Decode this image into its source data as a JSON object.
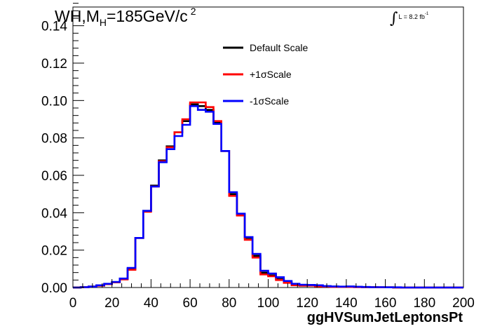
{
  "title": {
    "prefix": "WH,M",
    "sub": "H",
    "main": "=185GeV/c",
    "sup": "2"
  },
  "lumi": {
    "integral": "∫",
    "text": "L = 8.2 fb",
    "sup": "-1"
  },
  "chart_data": {
    "type": "line",
    "xlabel": "ggHVSumJetLeptonsPt",
    "ylabel": "",
    "xlim": [
      0,
      200
    ],
    "ylim": [
      0,
      0.15
    ],
    "x_ticks": [
      "0",
      "20",
      "40",
      "60",
      "80",
      "100",
      "120",
      "140",
      "160",
      "180",
      "200"
    ],
    "y_ticks": [
      "0.00",
      "0.02",
      "0.04",
      "0.06",
      "0.08",
      "0.10",
      "0.12",
      "0.14"
    ],
    "bin_width": 4,
    "x": [
      0,
      4,
      8,
      12,
      16,
      20,
      24,
      28,
      32,
      36,
      40,
      44,
      48,
      52,
      56,
      60,
      64,
      68,
      72,
      76,
      80,
      84,
      88,
      92,
      96,
      100,
      104,
      108,
      112,
      116,
      120,
      124,
      128,
      132,
      136,
      140,
      144,
      148,
      152,
      156,
      160,
      164,
      168,
      172,
      176,
      180,
      184,
      188,
      192,
      196
    ],
    "grid": false,
    "legend_position": "top-center",
    "series": [
      {
        "name": "Default Scale",
        "color": "#000000",
        "values": [
          0.0,
          0.0002,
          0.0005,
          0.001,
          0.0018,
          0.0028,
          0.0045,
          0.01,
          0.0265,
          0.041,
          0.0545,
          0.068,
          0.0755,
          0.083,
          0.089,
          0.098,
          0.097,
          0.095,
          0.088,
          0.073,
          0.05,
          0.039,
          0.0265,
          0.017,
          0.008,
          0.0065,
          0.0045,
          0.003,
          0.0015,
          0.001,
          0.0012,
          0.0008,
          0.0006,
          0.0004,
          0.0004,
          0.0004,
          0.0003,
          0.0002,
          0.0002,
          0.0001,
          0.0001,
          0,
          0,
          0,
          0,
          0,
          0,
          0,
          0,
          0
        ]
      },
      {
        "name": "+1σScale",
        "color": "#ff0000",
        "values": [
          0.0,
          0.0002,
          0.0005,
          0.001,
          0.0018,
          0.0028,
          0.0043,
          0.0095,
          0.0265,
          0.0405,
          0.054,
          0.0675,
          0.075,
          0.083,
          0.09,
          0.099,
          0.099,
          0.0965,
          0.089,
          0.073,
          0.049,
          0.0385,
          0.0255,
          0.016,
          0.007,
          0.006,
          0.004,
          0.0025,
          0.0012,
          0.001,
          0.001,
          0.0006,
          0.0005,
          0.0003,
          0.0003,
          0.0003,
          0.0002,
          0.0002,
          0.0002,
          0.0001,
          0.0001,
          0,
          0,
          0,
          0,
          0,
          0,
          0,
          0,
          0
        ]
      },
      {
        "name": "-1σScale",
        "color": "#0000ff",
        "values": [
          0.0,
          0.0002,
          0.0005,
          0.0012,
          0.002,
          0.003,
          0.0048,
          0.0105,
          0.0265,
          0.041,
          0.054,
          0.067,
          0.074,
          0.081,
          0.087,
          0.097,
          0.095,
          0.094,
          0.0875,
          0.073,
          0.051,
          0.0395,
          0.027,
          0.018,
          0.009,
          0.0075,
          0.0055,
          0.0035,
          0.002,
          0.0015,
          0.0014,
          0.0012,
          0.0008,
          0.0006,
          0.0005,
          0.0006,
          0.0004,
          0.0003,
          0.0002,
          0.0002,
          0.0001,
          0.0001,
          0,
          0,
          0,
          0,
          0,
          0,
          0,
          0
        ]
      }
    ]
  }
}
